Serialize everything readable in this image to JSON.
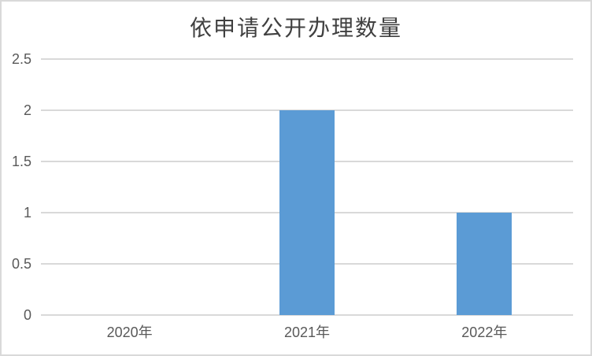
{
  "chart_data": {
    "type": "bar",
    "title": "依申请公开办理数量",
    "categories": [
      "2020年",
      "2021年",
      "2022年"
    ],
    "values": [
      0,
      2,
      1
    ],
    "xlabel": "",
    "ylabel": "",
    "ylim": [
      0,
      2.5
    ],
    "ytick_step": 0.5,
    "yticks": [
      "0",
      "0.5",
      "1",
      "1.5",
      "2",
      "2.5"
    ],
    "grid": true,
    "legend_position": "none",
    "colors": {
      "bar": "#5b9bd5",
      "gridline": "#d9d9d9",
      "axis_line": "#d9d9d9",
      "axis_text": "#595959",
      "title_text": "#404040",
      "frame_border": "#d9d9d9",
      "background": "#ffffff"
    }
  }
}
